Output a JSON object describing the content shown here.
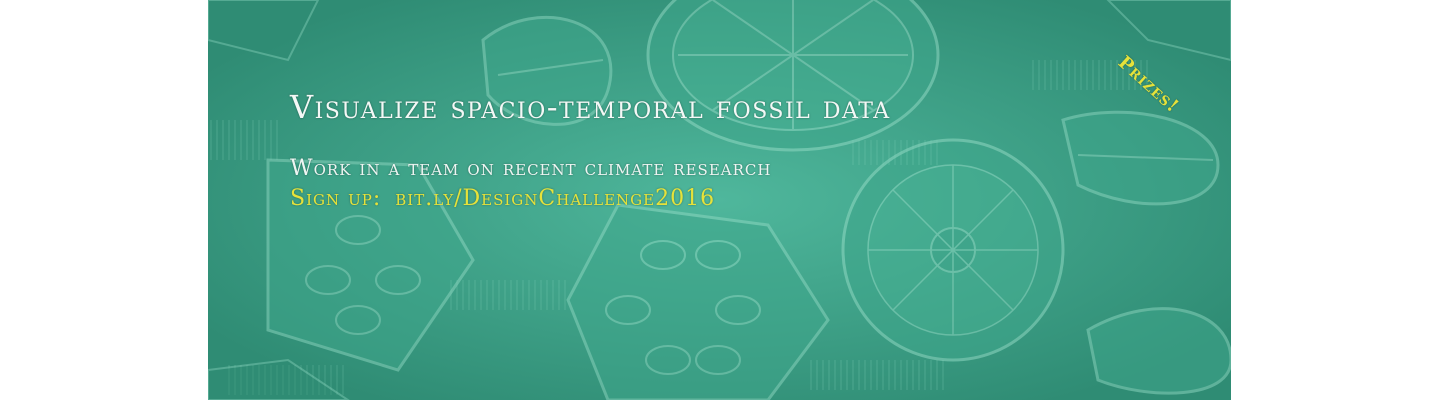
{
  "banner": {
    "headline": "Visualize spacio-temporal fossil data",
    "subheadline": "Work in a team on recent climate research",
    "signup_label": "Sign up:",
    "signup_link": "bit.ly/DesignChallenge2016",
    "prizes_badge": "Prizes!",
    "colors": {
      "background": "#3a9e85",
      "headline_text": "#f4f8f6",
      "accent_yellow": "#e6e23a"
    },
    "background_icon": "diatom-fossil-texture"
  }
}
